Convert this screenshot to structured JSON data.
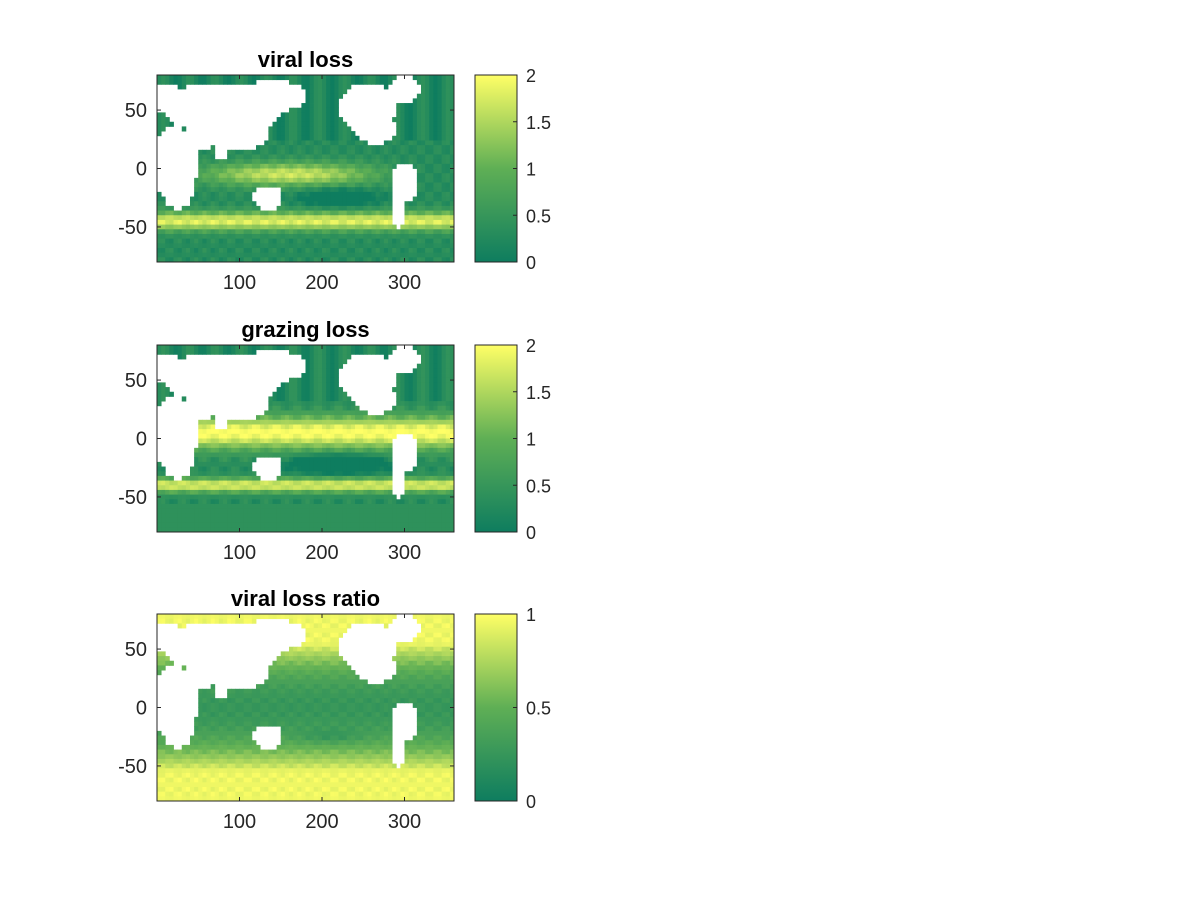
{
  "colors": {
    "background": "#ffffff",
    "axis": "#262626",
    "title": "#000000",
    "land": "#ffffff",
    "colormap_low": "#0e7d5f",
    "colormap_mid": "#5faf55",
    "colormap_high": "#ffff66"
  },
  "chart_data": [
    {
      "type": "heatmap",
      "title": "viral loss",
      "xlabel": "",
      "ylabel": "",
      "xlim": [
        0,
        360
      ],
      "ylim": [
        -80,
        80
      ],
      "xticks": [
        100,
        200,
        300
      ],
      "yticks": [
        50,
        0,
        -50
      ],
      "colorbar": {
        "min": 0,
        "max": 2,
        "ticks": [
          "0",
          "0.5",
          "1",
          "1.5",
          "2"
        ]
      },
      "field": "global ocean map; high values (~2) in subtropical/equatorial bands and Southern Ocean near -45; low values (~0) in subtropical gyres and high-latitude North Atlantic/Pacific"
    },
    {
      "type": "heatmap",
      "title": "grazing loss",
      "xlabel": "",
      "ylabel": "",
      "xlim": [
        0,
        360
      ],
      "ylim": [
        -80,
        80
      ],
      "xticks": [
        100,
        200,
        300
      ],
      "yticks": [
        50,
        0,
        -50
      ],
      "colorbar": {
        "min": 0,
        "max": 2,
        "ticks": [
          "0",
          "0.5",
          "1",
          "1.5",
          "2"
        ]
      },
      "field": "global ocean map; high values (~2) across equatorial and tropical oceans and band near -40; low values in subtropical gyres and high latitudes"
    },
    {
      "type": "heatmap",
      "title": "viral loss ratio",
      "xlabel": "",
      "ylabel": "",
      "xlim": [
        0,
        360
      ],
      "ylim": [
        -80,
        80
      ],
      "xticks": [
        100,
        200,
        300
      ],
      "yticks": [
        50,
        0,
        -50
      ],
      "colorbar": {
        "min": 0,
        "max": 1,
        "ticks": [
          "0",
          "0.5",
          "1"
        ]
      },
      "field": "global ocean map; ratio ~0.2-0.4 in tropics, ~0.8-1 at high latitudes and Southern Ocean"
    }
  ]
}
